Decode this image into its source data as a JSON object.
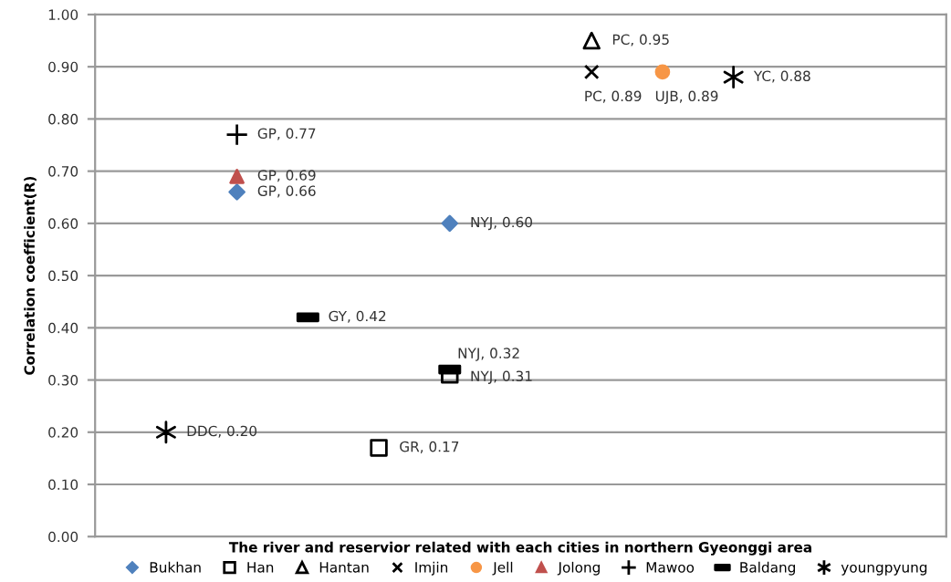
{
  "chart_data": {
    "type": "scatter",
    "xlabel": "The river and reservior related with each cities in northern Gyeonggi area",
    "ylabel": "Correlation coefficient(R)",
    "categories": [
      null,
      null,
      null,
      null,
      null,
      null,
      null,
      null,
      null,
      null,
      null
    ],
    "ylim": [
      0,
      1
    ],
    "yticks": [
      {
        "value": 0,
        "label": "0.00"
      },
      {
        "value": 0.1,
        "label": "0.10"
      },
      {
        "value": 0.2,
        "label": "0.20"
      },
      {
        "value": 0.3,
        "label": "0.30"
      },
      {
        "value": 0.4,
        "label": "0.40"
      },
      {
        "value": 0.5,
        "label": "0.50"
      },
      {
        "value": 0.6,
        "label": "0.60"
      },
      {
        "value": 0.7,
        "label": "0.70"
      },
      {
        "value": 0.8,
        "label": "0.80"
      },
      {
        "value": 0.9,
        "label": "0.90"
      },
      {
        "value": 1,
        "label": "1.00"
      }
    ],
    "grid": "y",
    "legend": "bottom",
    "series": [
      {
        "name": "Bukhan",
        "color": "#4f81bd",
        "values": [
          null,
          0.66,
          null,
          null,
          0.6,
          null,
          null,
          null,
          null,
          null,
          null
        ],
        "value_labels": [
          null,
          "GP, 0.66",
          null,
          null,
          "NYJ, 0.60",
          null,
          null,
          null,
          null,
          null,
          null
        ]
      },
      {
        "name": "Han",
        "color": "#000000",
        "values": [
          null,
          null,
          null,
          0.17,
          0.31,
          null,
          null,
          null,
          null,
          null,
          null
        ],
        "value_labels": [
          null,
          null,
          null,
          "GR, 0.17",
          "NYJ, 0.31",
          null,
          null,
          null,
          null,
          null,
          null
        ]
      },
      {
        "name": "Hantan",
        "color": "#000000",
        "values": [
          null,
          null,
          null,
          null,
          null,
          null,
          0.95,
          null,
          null,
          null,
          null
        ],
        "value_labels": [
          null,
          null,
          null,
          null,
          null,
          null,
          "PC, 0.95",
          null,
          null,
          null,
          null
        ]
      },
      {
        "name": "Imjin",
        "color": "#000000",
        "values": [
          null,
          null,
          null,
          null,
          null,
          null,
          0.89,
          null,
          null,
          null,
          null
        ],
        "value_labels": [
          null,
          null,
          null,
          null,
          null,
          null,
          "PC, 0.89",
          null,
          null,
          null,
          null
        ]
      },
      {
        "name": "Jell",
        "color": "#f79646",
        "values": [
          null,
          null,
          null,
          null,
          null,
          null,
          null,
          0.89,
          null,
          null,
          null
        ],
        "value_labels": [
          null,
          null,
          null,
          null,
          null,
          null,
          null,
          "UJB, 0.89",
          null,
          null,
          null
        ]
      },
      {
        "name": "Jolong",
        "color": "#c0504d",
        "values": [
          null,
          0.69,
          null,
          null,
          null,
          null,
          null,
          null,
          null,
          null,
          null
        ],
        "value_labels": [
          null,
          "GP, 0.69",
          null,
          null,
          null,
          null,
          null,
          null,
          null,
          null,
          null
        ]
      },
      {
        "name": "Mawoo",
        "color": "#000000",
        "values": [
          null,
          0.77,
          null,
          null,
          null,
          null,
          null,
          null,
          null,
          null,
          null
        ],
        "value_labels": [
          null,
          "GP, 0.77",
          null,
          null,
          null,
          null,
          null,
          null,
          null,
          null,
          null
        ]
      },
      {
        "name": "Baldang",
        "color": "#000000",
        "values": [
          null,
          null,
          0.42,
          null,
          0.32,
          null,
          null,
          null,
          null,
          null,
          null
        ],
        "value_labels": [
          null,
          null,
          "GY, 0.42",
          null,
          "NYJ, 0.32",
          null,
          null,
          null,
          null,
          null,
          null
        ]
      },
      {
        "name": "youngpyung",
        "color": "#000000",
        "values": [
          0.2,
          null,
          null,
          null,
          null,
          null,
          null,
          null,
          0.88,
          null,
          null
        ],
        "value_labels": [
          "DDC, 0.20",
          null,
          null,
          null,
          null,
          null,
          null,
          null,
          "YC, 0.88",
          null,
          null
        ]
      }
    ]
  }
}
